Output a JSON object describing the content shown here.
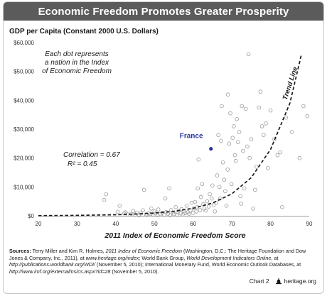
{
  "header": {
    "title": "Economic Freedom Promotes Greater Prosperity"
  },
  "chart_data": {
    "type": "scatter",
    "title": "Economic Freedom Promotes Greater Prosperity",
    "ylabel": "GDP per Capita (Constant 2000 U.S. Dollars)",
    "xlabel": "2011 Index of Economic Freedom Score",
    "xlim": [
      20,
      90
    ],
    "ylim": [
      0,
      60000
    ],
    "xticks": [
      20,
      30,
      40,
      50,
      60,
      70,
      80,
      90
    ],
    "xtick_labels": [
      "20",
      "30",
      "40",
      "50",
      "60",
      "70",
      "80",
      "90"
    ],
    "yticks": [
      0,
      10000,
      20000,
      30000,
      40000,
      50000,
      60000
    ],
    "ytick_labels": [
      "$0",
      "$10,000",
      "$20,000",
      "$30,000",
      "$40,000",
      "$50,000",
      "$60,000"
    ],
    "grid": false,
    "annotations": {
      "dot_note": [
        "Each dot represents",
        "a nation in the Index",
        "of Economic Freedom"
      ],
      "correlation": "Correlation = 0.67",
      "r_squared": "R² = 0.45",
      "trend_line_label": "Trend Line",
      "highlight_label": "France"
    },
    "highlight": {
      "name": "France",
      "x": 64.6,
      "y": 23200,
      "color": "#27339b"
    },
    "trend_line": {
      "style": "dashed",
      "points": [
        [
          20,
          60
        ],
        [
          30,
          150
        ],
        [
          40,
          380
        ],
        [
          45,
          600
        ],
        [
          50,
          950
        ],
        [
          55,
          1550
        ],
        [
          60,
          2600
        ],
        [
          65,
          4400
        ],
        [
          70,
          7600
        ],
        [
          75,
          13200
        ],
        [
          80,
          23000
        ],
        [
          85,
          39000
        ],
        [
          88,
          56000
        ]
      ]
    },
    "points": [
      [
        37.0,
        5500
      ],
      [
        37.5,
        7500
      ],
      [
        40.5,
        1400
      ],
      [
        41.0,
        3500
      ],
      [
        42.2,
        800
      ],
      [
        42.5,
        1200
      ],
      [
        43.0,
        500
      ],
      [
        44.0,
        700
      ],
      [
        44.5,
        1600
      ],
      [
        45.0,
        400
      ],
      [
        45.5,
        1100
      ],
      [
        46.0,
        200
      ],
      [
        46.5,
        800
      ],
      [
        47.0,
        1900
      ],
      [
        47.3,
        9000
      ],
      [
        47.8,
        500
      ],
      [
        48.0,
        300
      ],
      [
        48.5,
        1000
      ],
      [
        49.0,
        600
      ],
      [
        49.2,
        2500
      ],
      [
        49.5,
        400
      ],
      [
        50.0,
        1500
      ],
      [
        50.3,
        800
      ],
      [
        50.8,
        300
      ],
      [
        51.0,
        2200
      ],
      [
        51.5,
        600
      ],
      [
        52.0,
        1000
      ],
      [
        52.5,
        400
      ],
      [
        52.8,
        6000
      ],
      [
        53.0,
        1300
      ],
      [
        53.5,
        700
      ],
      [
        53.8,
        9500
      ],
      [
        54.0,
        300
      ],
      [
        54.3,
        2000
      ],
      [
        54.8,
        1100
      ],
      [
        55.0,
        600
      ],
      [
        55.5,
        3000
      ],
      [
        55.8,
        400
      ],
      [
        56.0,
        1200
      ],
      [
        56.3,
        1800
      ],
      [
        56.8,
        800
      ],
      [
        57.0,
        2300
      ],
      [
        57.3,
        500
      ],
      [
        57.6,
        1500
      ],
      [
        58.0,
        900
      ],
      [
        58.3,
        3500
      ],
      [
        58.6,
        1200
      ],
      [
        59.0,
        700
      ],
      [
        59.3,
        1900
      ],
      [
        59.6,
        4500
      ],
      [
        60.0,
        1000
      ],
      [
        60.2,
        2600
      ],
      [
        60.5,
        4800
      ],
      [
        60.8,
        1500
      ],
      [
        61.0,
        3000
      ],
      [
        61.2,
        9500
      ],
      [
        61.4,
        19500
      ],
      [
        61.8,
        2000
      ],
      [
        62.0,
        6500
      ],
      [
        62.3,
        11000
      ],
      [
        62.6,
        4000
      ],
      [
        62.9,
        2500
      ],
      [
        63.2,
        1800
      ],
      [
        63.6,
        5000
      ],
      [
        64.0,
        3200
      ],
      [
        64.3,
        7500
      ],
      [
        64.8,
        6000
      ],
      [
        65.0,
        10500
      ],
      [
        65.3,
        3800
      ],
      [
        65.6,
        1500
      ],
      [
        66.0,
        4500
      ],
      [
        66.2,
        14000
      ],
      [
        66.5,
        28000
      ],
      [
        66.8,
        10000
      ],
      [
        67.0,
        6000
      ],
      [
        67.2,
        26000
      ],
      [
        67.4,
        38000
      ],
      [
        67.7,
        18500
      ],
      [
        68.0,
        12500
      ],
      [
        68.3,
        8500
      ],
      [
        68.6,
        3500
      ],
      [
        68.9,
        16000
      ],
      [
        69.0,
        42000
      ],
      [
        69.3,
        25000
      ],
      [
        69.6,
        35500
      ],
      [
        69.9,
        11000
      ],
      [
        70.2,
        27000
      ],
      [
        70.5,
        31000
      ],
      [
        70.8,
        21000
      ],
      [
        71.0,
        19000
      ],
      [
        71.3,
        33500
      ],
      [
        71.6,
        25500
      ],
      [
        71.9,
        29000
      ],
      [
        72.2,
        6800
      ],
      [
        72.4,
        4200
      ],
      [
        72.6,
        38000
      ],
      [
        72.9,
        22500
      ],
      [
        73.2,
        9500
      ],
      [
        73.6,
        37000
      ],
      [
        74.0,
        24000
      ],
      [
        74.3,
        56000
      ],
      [
        74.6,
        20000
      ],
      [
        75.0,
        26500
      ],
      [
        75.5,
        2500
      ],
      [
        76.0,
        9000
      ],
      [
        76.4,
        17000
      ],
      [
        77.0,
        37500
      ],
      [
        77.4,
        43000
      ],
      [
        77.8,
        31000
      ],
      [
        78.2,
        28000
      ],
      [
        78.8,
        32000
      ],
      [
        79.3,
        16500
      ],
      [
        80.0,
        36500
      ],
      [
        81.0,
        26500
      ],
      [
        81.8,
        21000
      ],
      [
        82.5,
        22000
      ],
      [
        83.0,
        3000
      ],
      [
        84.0,
        34000
      ],
      [
        85.5,
        29000
      ],
      [
        87.5,
        20000
      ],
      [
        88.5,
        38000
      ],
      [
        89.5,
        34500
      ]
    ]
  },
  "sources": {
    "label": "Sources:",
    "part1": " Terry Miller and Kim R. Holmes, ",
    "book": "2011 Index of Economic Freedom",
    "part2": " (Washington, D.C.: The Heritage Foundation and Dow Jones & Company, Inc., 2011), at ",
    "url1": "www.heritage.org/index",
    "part3": "; World Bank Group, ",
    "wdi": "World Development Indicators Online",
    "part4": ", at ",
    "url2": "http://publications.worldbank.org/WDI/",
    "part5": " (November 5, 2010); International Monetary Fund, World Economic Outlook Databases, at ",
    "url3": "http://www.imf.org/external/ns/cs.aspx?id=28",
    "part6": " (November 5, 2010)."
  },
  "footer": {
    "chart_label": "Chart 2",
    "brand": "heritage.org",
    "icon": "liberty-bell-icon"
  },
  "colors": {
    "title_bar": "#5b5b5b",
    "highlight": "#27339b",
    "dots": "#9a9a9a"
  }
}
